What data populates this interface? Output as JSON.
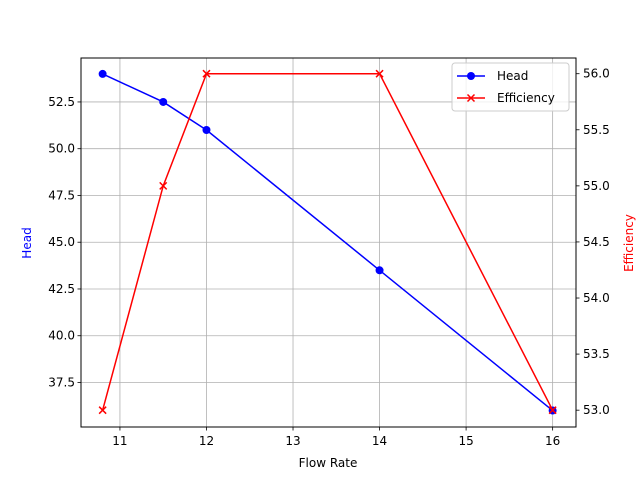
{
  "chart_data": {
    "type": "line",
    "title": "",
    "xlabel": "Flow Rate",
    "ylabel": "Head",
    "ylabel_right": "Efficiency",
    "x": [
      10.8,
      11.5,
      12,
      14,
      16
    ],
    "series": [
      {
        "name": "Head",
        "axis": "left",
        "color": "#0000ff",
        "marker": "circle",
        "values": [
          54.0,
          52.5,
          51.0,
          43.5,
          36.0
        ]
      },
      {
        "name": "Efficiency",
        "axis": "right",
        "color": "#ff0000",
        "marker": "x",
        "values": [
          53.0,
          55.0,
          56.0,
          56.0,
          53.0
        ]
      }
    ],
    "xlim": [
      10.55,
      16.27
    ],
    "ylim": [
      35.12,
      54.85
    ],
    "ylim_right": [
      52.85,
      56.14
    ],
    "xticks": [
      11,
      12,
      13,
      14,
      15,
      16
    ],
    "yticks": [
      37.5,
      40.0,
      42.5,
      45.0,
      47.5,
      50.0,
      52.5
    ],
    "yticks_right": [
      53.0,
      53.5,
      54.0,
      54.5,
      55.0,
      55.5,
      56.0
    ],
    "grid": true,
    "legend_position": "upper right"
  },
  "legend": {
    "items": [
      {
        "label": "Head",
        "color": "#0000ff",
        "marker": "circle"
      },
      {
        "label": "Efficiency",
        "color": "#ff0000",
        "marker": "x"
      }
    ]
  }
}
